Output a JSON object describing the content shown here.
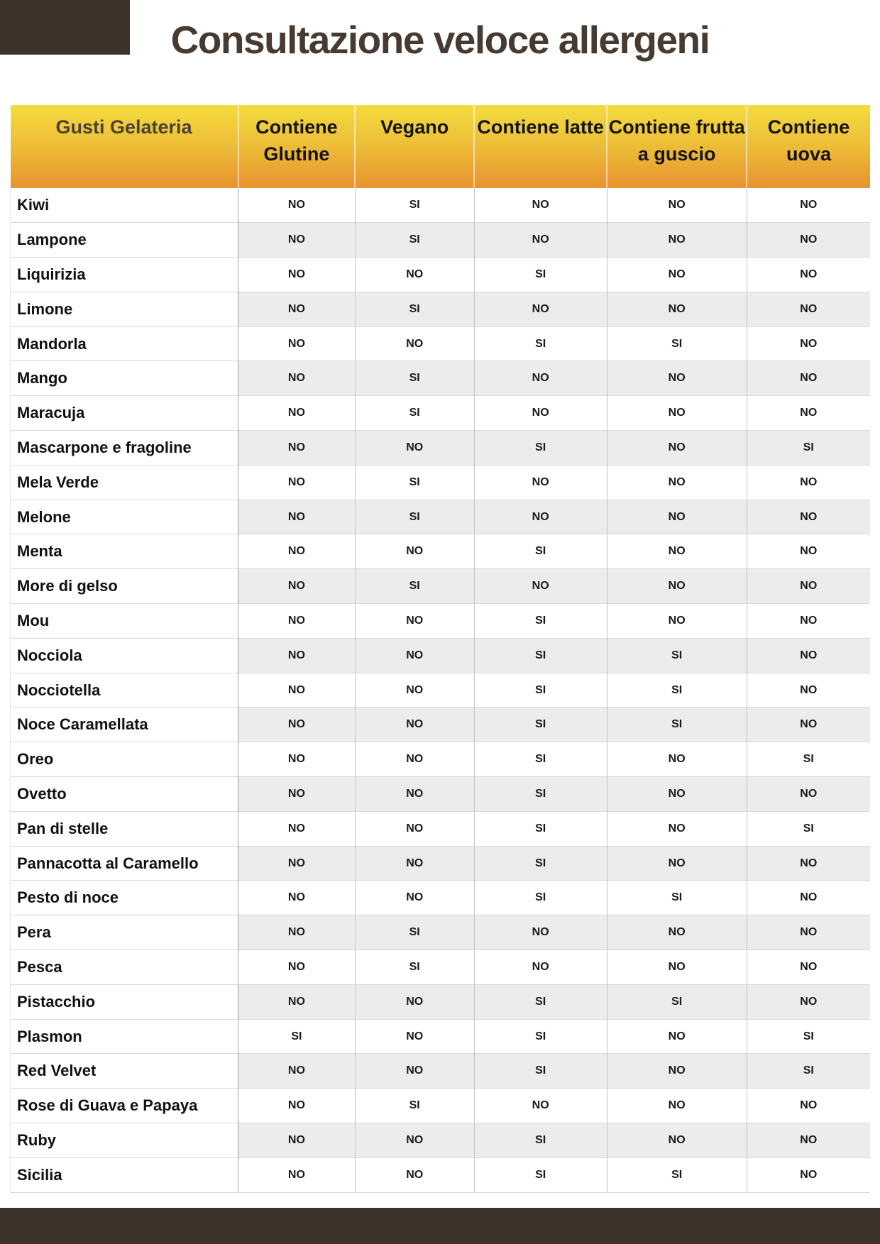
{
  "title": "Consultazione veloce allergeni",
  "colors": {
    "corner_and_footer": "#3E332B",
    "title_text": "#473B31",
    "header_gradient_top": "#F4DC3E",
    "header_gradient_bottom": "#E8932F",
    "header_first_col_text": "#4C4136",
    "stripe_gray": "#ECECEC"
  },
  "table": {
    "columns": [
      "Gusti Gelateria",
      "Contiene Glutine",
      "Vegano",
      "Contiene latte",
      "Contiene frutta a guscio",
      "Contiene uova"
    ],
    "rows": [
      {
        "flavor": "Kiwi",
        "values": [
          "NO",
          "SI",
          "NO",
          "NO",
          "NO"
        ]
      },
      {
        "flavor": "Lampone",
        "values": [
          "NO",
          "SI",
          "NO",
          "NO",
          "NO"
        ]
      },
      {
        "flavor": "Liquirizia",
        "values": [
          "NO",
          "NO",
          "SI",
          "NO",
          "NO"
        ]
      },
      {
        "flavor": "Limone",
        "values": [
          "NO",
          "SI",
          "NO",
          "NO",
          "NO"
        ]
      },
      {
        "flavor": "Mandorla",
        "values": [
          "NO",
          "NO",
          "SI",
          "SI",
          "NO"
        ]
      },
      {
        "flavor": "Mango",
        "values": [
          "NO",
          "SI",
          "NO",
          "NO",
          "NO"
        ]
      },
      {
        "flavor": "Maracuja",
        "values": [
          "NO",
          "SI",
          "NO",
          "NO",
          "NO"
        ]
      },
      {
        "flavor": "Mascarpone e fragoline",
        "values": [
          "NO",
          "NO",
          "SI",
          "NO",
          "SI"
        ]
      },
      {
        "flavor": "Mela Verde",
        "values": [
          "NO",
          "SI",
          "NO",
          "NO",
          "NO"
        ]
      },
      {
        "flavor": "Melone",
        "values": [
          "NO",
          "SI",
          "NO",
          "NO",
          "NO"
        ]
      },
      {
        "flavor": "Menta",
        "values": [
          "NO",
          "NO",
          "SI",
          "NO",
          "NO"
        ]
      },
      {
        "flavor": "More di gelso",
        "values": [
          "NO",
          "SI",
          "NO",
          "NO",
          "NO"
        ]
      },
      {
        "flavor": "Mou",
        "values": [
          "NO",
          "NO",
          "SI",
          "NO",
          "NO"
        ]
      },
      {
        "flavor": "Nocciola",
        "values": [
          "NO",
          "NO",
          "SI",
          "SI",
          "NO"
        ]
      },
      {
        "flavor": "Nocciotella",
        "values": [
          "NO",
          "NO",
          "SI",
          "SI",
          "NO"
        ]
      },
      {
        "flavor": "Noce Caramellata",
        "values": [
          "NO",
          "NO",
          "SI",
          "SI",
          "NO"
        ]
      },
      {
        "flavor": "Oreo",
        "values": [
          "NO",
          "NO",
          "SI",
          "NO",
          "SI"
        ]
      },
      {
        "flavor": "Ovetto",
        "values": [
          "NO",
          "NO",
          "SI",
          "NO",
          "NO"
        ]
      },
      {
        "flavor": "Pan di stelle",
        "values": [
          "NO",
          "NO",
          "SI",
          "NO",
          "SI"
        ]
      },
      {
        "flavor": "Pannacotta al Caramello",
        "values": [
          "NO",
          "NO",
          "SI",
          "NO",
          "NO"
        ]
      },
      {
        "flavor": "Pesto di noce",
        "values": [
          "NO",
          "NO",
          "SI",
          "SI",
          "NO"
        ]
      },
      {
        "flavor": "Pera",
        "values": [
          "NO",
          "SI",
          "NO",
          "NO",
          "NO"
        ]
      },
      {
        "flavor": "Pesca",
        "values": [
          "NO",
          "SI",
          "NO",
          "NO",
          "NO"
        ]
      },
      {
        "flavor": "Pistacchio",
        "values": [
          "NO",
          "NO",
          "SI",
          "SI",
          "NO"
        ]
      },
      {
        "flavor": "Plasmon",
        "values": [
          "SI",
          "NO",
          "SI",
          "NO",
          "SI"
        ]
      },
      {
        "flavor": "Red Velvet",
        "values": [
          "NO",
          "NO",
          "SI",
          "NO",
          "SI"
        ]
      },
      {
        "flavor": "Rose di Guava e Papaya",
        "values": [
          "NO",
          "SI",
          "NO",
          "NO",
          "NO"
        ]
      },
      {
        "flavor": "Ruby",
        "values": [
          "NO",
          "NO",
          "SI",
          "NO",
          "NO"
        ]
      },
      {
        "flavor": "Sicilia",
        "values": [
          "NO",
          "NO",
          "SI",
          "SI",
          "NO"
        ]
      }
    ]
  }
}
